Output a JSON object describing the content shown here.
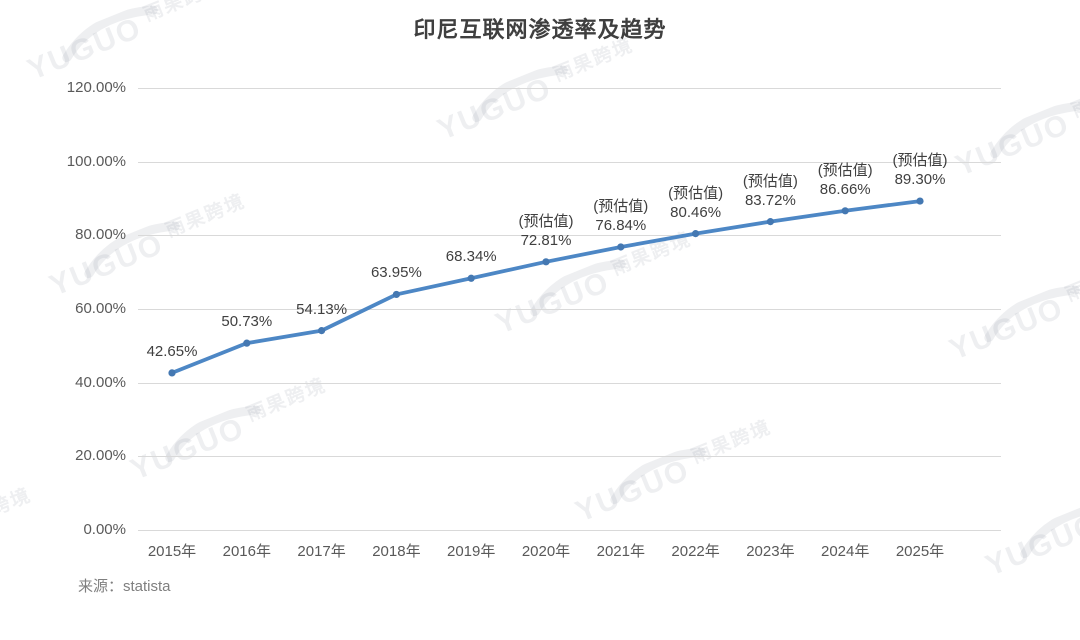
{
  "page": {
    "title": "印尼互联网渗透率及趋势",
    "source": "来源：statista"
  },
  "watermark": {
    "brand": "YUGUO",
    "brand_zh": "雨果跨境"
  },
  "chart_data": {
    "type": "line",
    "title": "印尼互联网渗透率及趋势",
    "categories": [
      "2015年",
      "2016年",
      "2017年",
      "2018年",
      "2019年",
      "2020年",
      "2021年",
      "2022年",
      "2023年",
      "2024年",
      "2025年"
    ],
    "values": [
      42.65,
      50.73,
      54.13,
      63.95,
      68.34,
      72.81,
      76.84,
      80.46,
      83.72,
      86.66,
      89.3
    ],
    "point_labels": [
      "42.65%",
      "50.73%",
      "54.13%",
      "63.95%",
      "68.34%",
      "72.81%",
      "76.84%",
      "80.46%",
      "83.72%",
      "86.66%",
      "89.30%"
    ],
    "estimate_flags": [
      false,
      false,
      false,
      false,
      false,
      true,
      true,
      true,
      true,
      true,
      true
    ],
    "estimate_label": "(预估值)",
    "y_ticks": [
      {
        "value": 0,
        "label": "0.00%"
      },
      {
        "value": 20,
        "label": "20.00%"
      },
      {
        "value": 40,
        "label": "40.00%"
      },
      {
        "value": 60,
        "label": "60.00%"
      },
      {
        "value": 80,
        "label": "80.00%"
      },
      {
        "value": 100,
        "label": "100.00%"
      },
      {
        "value": 120,
        "label": "120.00%"
      }
    ],
    "ylim": [
      0,
      120
    ],
    "xlabel": "",
    "ylabel": "",
    "legend": "none",
    "grid": true,
    "line_color": "#4d87c5",
    "marker_color": "#4478b2",
    "grid_color": "#d9d9d9",
    "label_color": "#404040",
    "axis_text_color": "#595959"
  }
}
